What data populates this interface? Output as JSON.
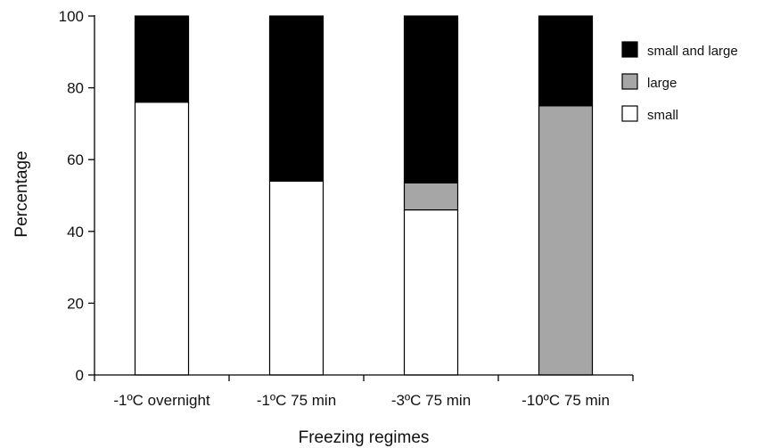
{
  "chart_data": {
    "type": "bar",
    "stacked": true,
    "title": "",
    "xlabel": "Freezing regimes",
    "ylabel": "Percentage",
    "ylim": [
      0,
      100
    ],
    "yticks": [
      0,
      20,
      40,
      60,
      80,
      100
    ],
    "categories": [
      "-1ºC overnight",
      "-1ºC 75 min",
      "-3ºC 75 min",
      "-10ºC 75 min"
    ],
    "series": [
      {
        "name": "small",
        "color": "#ffffff",
        "values": [
          76,
          54,
          46,
          0
        ]
      },
      {
        "name": "large",
        "color": "#a6a6a6",
        "values": [
          0,
          0,
          7.5,
          75
        ]
      },
      {
        "name": "small and large",
        "color": "#000000",
        "values": [
          24,
          46,
          46.5,
          25
        ]
      }
    ],
    "legend": {
      "placement": "right",
      "entries": [
        "small and large",
        "large",
        "small"
      ]
    },
    "grid": false
  }
}
